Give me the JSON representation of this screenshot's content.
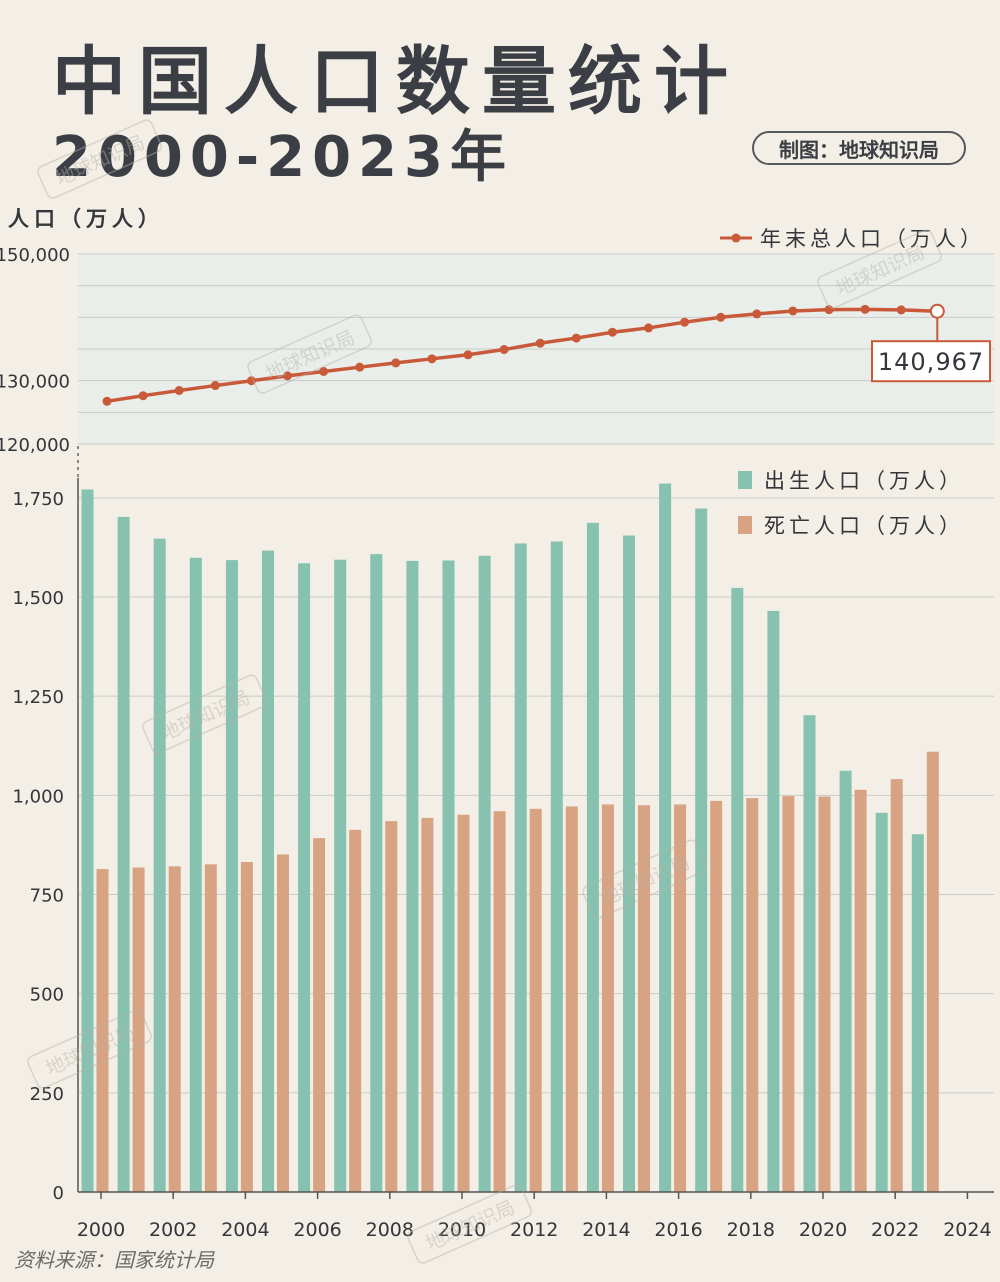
{
  "title": "中国人口数量统计",
  "subtitle": "2000-2023年",
  "credit": "制图：地球知识局",
  "source": "资料来源：国家统计局",
  "watermark": "地球知识局",
  "colors": {
    "background": "#f3efe6",
    "plot_bg_top": "#e9eeea",
    "line": "#c85a3a",
    "births": "#86c2af",
    "deaths": "#d7a383",
    "grid": "#c9ccc8"
  },
  "chart_data": [
    {
      "type": "line",
      "ylabel": "人口（万人）",
      "x": [
        2000,
        2001,
        2002,
        2003,
        2004,
        2005,
        2006,
        2007,
        2008,
        2009,
        2010,
        2011,
        2012,
        2013,
        2014,
        2015,
        2016,
        2017,
        2018,
        2019,
        2020,
        2021,
        2022,
        2023
      ],
      "series": [
        {
          "name": "年末总人口（万人）",
          "values": [
            126743,
            127627,
            128453,
            129227,
            129988,
            130756,
            131448,
            132129,
            132802,
            133450,
            134091,
            134916,
            135922,
            136726,
            137646,
            138326,
            139232,
            140011,
            140541,
            141008,
            141212,
            141260,
            141175,
            140967
          ]
        }
      ],
      "ylim": [
        120000,
        150000
      ],
      "yticks": [
        120000,
        130000,
        150000
      ],
      "ytick_labels": [
        "120,000",
        "130,000",
        "150,000"
      ],
      "annotation": {
        "x": 2023,
        "label": "140,967"
      },
      "grid": true,
      "legend": "top-right"
    },
    {
      "type": "bar",
      "categories": [
        2000,
        2001,
        2002,
        2003,
        2004,
        2005,
        2006,
        2007,
        2008,
        2009,
        2010,
        2011,
        2012,
        2013,
        2014,
        2015,
        2016,
        2017,
        2018,
        2019,
        2020,
        2021,
        2022,
        2023
      ],
      "series": [
        {
          "name": "出生人口（万人）",
          "values": [
            1771,
            1702,
            1647,
            1599,
            1593,
            1617,
            1585,
            1594,
            1608,
            1591,
            1592,
            1604,
            1635,
            1640,
            1687,
            1655,
            1786,
            1723,
            1523,
            1465,
            1202,
            1062,
            956,
            902
          ]
        },
        {
          "name": "死亡人口（万人）",
          "values": [
            814,
            818,
            821,
            826,
            832,
            851,
            892,
            913,
            935,
            943,
            951,
            960,
            966,
            972,
            977,
            975,
            977,
            986,
            993,
            998,
            997,
            1014,
            1041,
            1110
          ]
        }
      ],
      "ylim": [
        0,
        1800
      ],
      "yticks": [
        0,
        250,
        500,
        750,
        1000,
        1250,
        1500,
        1750
      ],
      "ytick_labels": [
        "0",
        "250",
        "500",
        "750",
        "1,000",
        "1,250",
        "1,500",
        "1,750"
      ],
      "xticks": [
        2000,
        2002,
        2004,
        2006,
        2008,
        2010,
        2012,
        2014,
        2016,
        2018,
        2020,
        2022,
        2024
      ],
      "xtick_labels": [
        "2000",
        "2002",
        "2004",
        "2006",
        "2008",
        "2010",
        "2012",
        "2014",
        "2016",
        "2018",
        "2020",
        "2022",
        "2024"
      ],
      "grid": true,
      "legend": "top-right"
    }
  ]
}
